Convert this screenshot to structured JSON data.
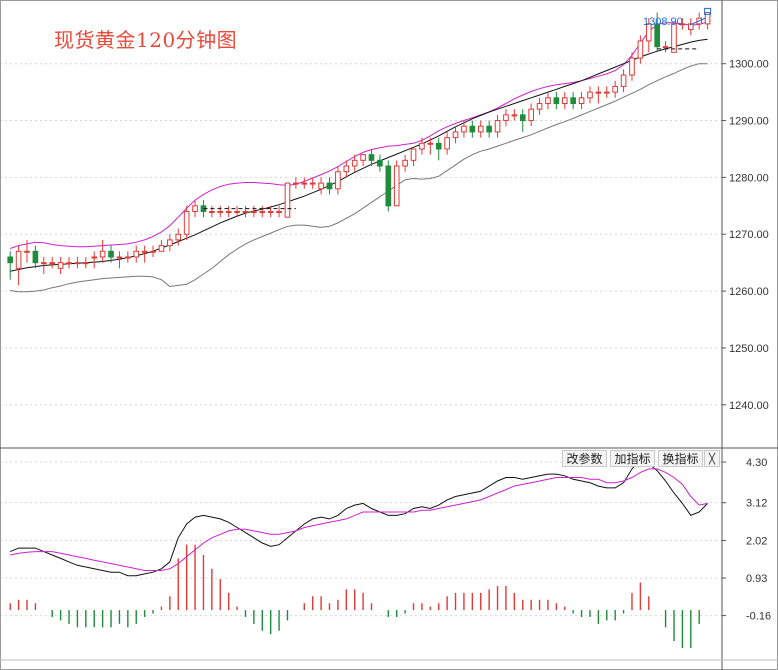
{
  "title": "现货黄金120分钟图",
  "toolbar": {
    "change_params": "改参数",
    "add_indicator": "加指标",
    "switch_indicator": "换指标",
    "close": "╳"
  },
  "colors": {
    "up": "#e53935",
    "down": "#1e8c3a",
    "boll_upper": "#cc22cc",
    "boll_mid": "#111111",
    "boll_lower": "#777777",
    "macd_dif": "#111111",
    "macd_dea": "#cc22cc",
    "grid": "#d6d6d6",
    "axis_text": "#333333",
    "annotation": "#1e6fd9"
  },
  "chart_data": [
    {
      "type": "candlestick",
      "title": "现货黄金120分钟图",
      "ylim": [
        1232.4,
        1310.5
      ],
      "y_ticks": [
        1240.0,
        1250.0,
        1260.0,
        1270.0,
        1280.0,
        1290.0,
        1300.0
      ],
      "y_tick_labels": [
        "1240.00",
        "1250.00",
        "1260.00",
        "1270.00",
        "1280.00",
        "1290.00",
        "1300.00"
      ],
      "grid": true,
      "annotation": "1308.90",
      "ohlc": [
        [
          1266,
          1267,
          1262,
          1265
        ],
        [
          1264,
          1268,
          1261,
          1267
        ],
        [
          1267,
          1269,
          1265,
          1267
        ],
        [
          1267,
          1268,
          1264,
          1265
        ],
        [
          1265,
          1266,
          1263,
          1265
        ],
        [
          1265,
          1266,
          1264,
          1265
        ],
        [
          1264,
          1266,
          1263,
          1265
        ],
        [
          1265,
          1266,
          1264,
          1265
        ],
        [
          1265,
          1266,
          1264,
          1265
        ],
        [
          1265,
          1266,
          1264,
          1265
        ],
        [
          1266,
          1267,
          1264,
          1266
        ],
        [
          1266,
          1269,
          1265,
          1267
        ],
        [
          1267,
          1268,
          1265,
          1266
        ],
        [
          1266,
          1267,
          1264,
          1266
        ],
        [
          1266,
          1267,
          1265,
          1266
        ],
        [
          1266,
          1268,
          1265,
          1267
        ],
        [
          1267,
          1268,
          1265,
          1267
        ],
        [
          1267,
          1268,
          1266,
          1267
        ],
        [
          1267,
          1269,
          1267,
          1268
        ],
        [
          1268,
          1270,
          1267,
          1269
        ],
        [
          1269,
          1271,
          1268,
          1270
        ],
        [
          1270,
          1275,
          1269,
          1274
        ],
        [
          1274,
          1276,
          1273,
          1275
        ],
        [
          1275,
          1276,
          1273,
          1274
        ],
        [
          1274,
          1275,
          1273,
          1274
        ],
        [
          1274,
          1275,
          1273,
          1274
        ],
        [
          1274,
          1275,
          1273,
          1274
        ],
        [
          1274,
          1275,
          1273,
          1274
        ],
        [
          1274,
          1275,
          1273,
          1274
        ],
        [
          1274,
          1275,
          1273,
          1274
        ],
        [
          1274,
          1275,
          1273,
          1274
        ],
        [
          1274,
          1275,
          1273,
          1274
        ],
        [
          1274,
          1275,
          1273,
          1274
        ],
        [
          1273,
          1279,
          1273,
          1279
        ],
        [
          1279,
          1280,
          1278,
          1279
        ],
        [
          1279,
          1280,
          1278,
          1279
        ],
        [
          1279,
          1280,
          1278,
          1279
        ],
        [
          1278,
          1280,
          1277,
          1279
        ],
        [
          1279,
          1280,
          1277,
          1278
        ],
        [
          1278,
          1282,
          1277,
          1281
        ],
        [
          1281,
          1283,
          1280,
          1282
        ],
        [
          1282,
          1284,
          1281,
          1283
        ],
        [
          1283,
          1284,
          1282,
          1284
        ],
        [
          1284,
          1285,
          1282,
          1283
        ],
        [
          1283,
          1284,
          1281,
          1282
        ],
        [
          1282,
          1283,
          1274,
          1275
        ],
        [
          1275,
          1283,
          1275,
          1282
        ],
        [
          1282,
          1284,
          1281,
          1283
        ],
        [
          1283,
          1285,
          1282,
          1285
        ],
        [
          1285,
          1287,
          1284,
          1286
        ],
        [
          1286,
          1287,
          1284,
          1286
        ],
        [
          1286,
          1287,
          1283,
          1285
        ],
        [
          1285,
          1288,
          1284,
          1287
        ],
        [
          1287,
          1289,
          1286,
          1288
        ],
        [
          1288,
          1290,
          1287,
          1289
        ],
        [
          1289,
          1290,
          1287,
          1288
        ],
        [
          1288,
          1290,
          1287,
          1289
        ],
        [
          1289,
          1290,
          1287,
          1288
        ],
        [
          1288,
          1291,
          1287,
          1290
        ],
        [
          1290,
          1292,
          1289,
          1291
        ],
        [
          1291,
          1292,
          1290,
          1291
        ],
        [
          1291,
          1292,
          1288,
          1290
        ],
        [
          1290,
          1293,
          1289,
          1292
        ],
        [
          1292,
          1294,
          1291,
          1293
        ],
        [
          1293,
          1295,
          1292,
          1294
        ],
        [
          1294,
          1295,
          1292,
          1293
        ],
        [
          1293,
          1295,
          1292,
          1294
        ],
        [
          1294,
          1295,
          1292,
          1293
        ],
        [
          1293,
          1295,
          1292,
          1294
        ],
        [
          1294,
          1296,
          1293,
          1295
        ],
        [
          1295,
          1296,
          1293,
          1295
        ],
        [
          1295,
          1296,
          1294,
          1295
        ],
        [
          1295,
          1297,
          1294,
          1296
        ],
        [
          1296,
          1299,
          1295,
          1298
        ],
        [
          1298,
          1302,
          1297,
          1301
        ],
        [
          1301,
          1305,
          1300,
          1304
        ],
        [
          1304,
          1308,
          1302,
          1307
        ],
        [
          1307,
          1309,
          1302,
          1303
        ],
        [
          1303,
          1304,
          1302,
          1303
        ],
        [
          1302,
          1307,
          1302,
          1307
        ],
        [
          1307,
          1308,
          1306,
          1307
        ],
        [
          1306,
          1308,
          1305,
          1307
        ],
        [
          1307,
          1309,
          1306,
          1308
        ],
        [
          1307,
          1309,
          1306,
          1309
        ]
      ],
      "boll_upper": [
        1267.5,
        1268.0,
        1268.3,
        1268.6,
        1268.5,
        1268.2,
        1268.0,
        1267.9,
        1267.8,
        1267.8,
        1267.9,
        1268.0,
        1268.1,
        1268.2,
        1268.3,
        1268.6,
        1269.0,
        1269.6,
        1270.4,
        1271.5,
        1273.0,
        1274.6,
        1276.0,
        1277.0,
        1277.8,
        1278.4,
        1278.8,
        1279.0,
        1279.1,
        1279.1,
        1279.0,
        1278.9,
        1278.7,
        1278.6,
        1278.8,
        1279.3,
        1279.9,
        1280.5,
        1281.1,
        1281.9,
        1282.8,
        1283.7,
        1284.4,
        1284.9,
        1285.2,
        1285.5,
        1285.6,
        1285.8,
        1286.0,
        1286.5,
        1287.3,
        1288.2,
        1288.9,
        1289.5,
        1290.0,
        1290.5,
        1291.0,
        1291.5,
        1292.2,
        1293.0,
        1293.8,
        1294.5,
        1295.1,
        1295.6,
        1296.0,
        1296.3,
        1296.5,
        1296.7,
        1297.0,
        1297.4,
        1297.8,
        1298.2,
        1298.8,
        1299.8,
        1301.5,
        1303.6,
        1305.7,
        1306.9,
        1307.2,
        1307.2,
        1307.0,
        1306.8,
        1306.9,
        1307.4
      ],
      "boll_mid": [
        1263.5,
        1263.8,
        1264.1,
        1264.3,
        1264.5,
        1264.6,
        1264.7,
        1264.8,
        1264.9,
        1265.0,
        1265.1,
        1265.2,
        1265.4,
        1265.6,
        1265.9,
        1266.2,
        1266.6,
        1267.0,
        1267.6,
        1268.1,
        1268.7,
        1269.3,
        1269.9,
        1270.6,
        1271.3,
        1272.0,
        1272.6,
        1273.2,
        1273.7,
        1274.1,
        1274.4,
        1274.8,
        1275.2,
        1275.7,
        1276.2,
        1276.7,
        1277.3,
        1277.9,
        1278.6,
        1279.3,
        1280.1,
        1280.9,
        1281.6,
        1282.3,
        1282.9,
        1283.5,
        1284.1,
        1284.7,
        1285.3,
        1285.9,
        1286.6,
        1287.3,
        1288.1,
        1288.9,
        1289.6,
        1290.3,
        1290.9,
        1291.5,
        1292.0,
        1292.5,
        1293.0,
        1293.5,
        1294.0,
        1294.5,
        1295.0,
        1295.5,
        1296.0,
        1296.5,
        1297.0,
        1297.6,
        1298.2,
        1298.8,
        1299.4,
        1300.0,
        1300.6,
        1301.2,
        1301.7,
        1302.2,
        1302.6,
        1303.0,
        1303.4,
        1303.8,
        1304.1,
        1304.3
      ],
      "boll_lower": [
        1260.1,
        1259.9,
        1259.9,
        1260.0,
        1260.2,
        1260.6,
        1260.9,
        1261.3,
        1261.6,
        1261.8,
        1262.0,
        1262.2,
        1262.3,
        1262.4,
        1262.5,
        1262.6,
        1262.6,
        1262.5,
        1262.0,
        1260.8,
        1261.0,
        1261.2,
        1262.0,
        1263.0,
        1264.0,
        1265.2,
        1266.4,
        1267.4,
        1268.3,
        1269.0,
        1269.6,
        1270.2,
        1270.8,
        1271.4,
        1271.6,
        1271.6,
        1271.4,
        1271.2,
        1271.4,
        1272.0,
        1272.8,
        1273.6,
        1274.6,
        1275.6,
        1276.6,
        1277.6,
        1278.6,
        1279.6,
        1279.8,
        1279.7,
        1279.8,
        1280.2,
        1281.2,
        1282.2,
        1283.2,
        1284.0,
        1284.6,
        1285.0,
        1285.5,
        1286.0,
        1286.5,
        1287.0,
        1287.5,
        1288.1,
        1288.7,
        1289.3,
        1289.8,
        1290.4,
        1291.0,
        1291.6,
        1292.2,
        1292.8,
        1293.4,
        1294.1,
        1294.8,
        1295.5,
        1296.3,
        1297.0,
        1297.7,
        1298.3,
        1299.0,
        1299.6,
        1300.0,
        1300.0
      ],
      "dashed_lines": [
        [
          23,
          34,
          1274.5
        ],
        [
          77,
          82,
          1302.6
        ]
      ]
    },
    {
      "type": "macd",
      "ylim": [
        -1.45,
        4.65
      ],
      "y_ticks": [
        -0.16,
        0.93,
        2.02,
        3.12,
        4.3
      ],
      "y_tick_labels": [
        "-0.16",
        "0.93",
        "2.02",
        "3.12",
        "4.30"
      ],
      "dif": [
        1.7,
        1.8,
        1.8,
        1.8,
        1.7,
        1.6,
        1.5,
        1.4,
        1.3,
        1.25,
        1.2,
        1.15,
        1.1,
        1.1,
        1.0,
        1.0,
        1.05,
        1.1,
        1.2,
        1.4,
        2.1,
        2.5,
        2.7,
        2.75,
        2.7,
        2.65,
        2.55,
        2.4,
        2.25,
        2.1,
        1.95,
        1.85,
        1.9,
        2.1,
        2.3,
        2.5,
        2.65,
        2.7,
        2.65,
        2.75,
        2.95,
        3.05,
        3.1,
        2.95,
        2.85,
        2.75,
        2.75,
        2.8,
        2.95,
        3.0,
        2.95,
        3.05,
        3.2,
        3.3,
        3.35,
        3.4,
        3.45,
        3.6,
        3.75,
        3.85,
        3.85,
        3.8,
        3.85,
        3.9,
        3.95,
        3.95,
        3.9,
        3.8,
        3.75,
        3.7,
        3.6,
        3.55,
        3.55,
        3.7,
        4.1,
        4.35,
        4.25,
        4.05,
        3.75,
        3.4,
        3.1,
        2.75,
        2.85,
        3.1
      ],
      "dea": [
        1.6,
        1.65,
        1.68,
        1.7,
        1.7,
        1.7,
        1.65,
        1.6,
        1.55,
        1.5,
        1.45,
        1.4,
        1.35,
        1.3,
        1.25,
        1.2,
        1.15,
        1.15,
        1.15,
        1.2,
        1.35,
        1.55,
        1.75,
        1.95,
        2.1,
        2.2,
        2.3,
        2.35,
        2.35,
        2.3,
        2.25,
        2.2,
        2.2,
        2.25,
        2.3,
        2.4,
        2.45,
        2.5,
        2.55,
        2.6,
        2.65,
        2.75,
        2.85,
        2.85,
        2.85,
        2.85,
        2.85,
        2.85,
        2.85,
        2.9,
        2.9,
        2.95,
        3.0,
        3.05,
        3.1,
        3.15,
        3.2,
        3.3,
        3.4,
        3.5,
        3.6,
        3.65,
        3.7,
        3.75,
        3.8,
        3.85,
        3.85,
        3.85,
        3.85,
        3.8,
        3.8,
        3.7,
        3.7,
        3.75,
        3.85,
        4.0,
        4.1,
        4.1,
        4.0,
        3.85,
        3.65,
        3.3,
        3.05,
        3.1
      ],
      "macd": [
        0.2,
        0.3,
        0.3,
        0.2,
        0.0,
        -0.2,
        -0.3,
        -0.4,
        -0.5,
        -0.5,
        -0.5,
        -0.5,
        -0.5,
        -0.4,
        -0.5,
        -0.4,
        -0.2,
        -0.1,
        0.1,
        0.4,
        1.5,
        1.9,
        1.9,
        1.6,
        1.2,
        0.9,
        0.5,
        0.1,
        -0.2,
        -0.4,
        -0.6,
        -0.7,
        -0.6,
        -0.3,
        0.0,
        0.2,
        0.4,
        0.4,
        0.2,
        0.3,
        0.6,
        0.6,
        0.5,
        0.2,
        0.0,
        -0.2,
        -0.2,
        -0.1,
        0.2,
        0.2,
        0.1,
        0.2,
        0.4,
        0.5,
        0.5,
        0.5,
        0.5,
        0.6,
        0.7,
        0.7,
        0.5,
        0.3,
        0.3,
        0.3,
        0.3,
        0.2,
        0.1,
        -0.1,
        -0.2,
        -0.2,
        -0.4,
        -0.3,
        -0.3,
        -0.1,
        0.5,
        0.8,
        0.4,
        0.0,
        -0.5,
        -0.9,
        -1.1,
        -1.1,
        -0.4,
        0.0
      ]
    }
  ]
}
